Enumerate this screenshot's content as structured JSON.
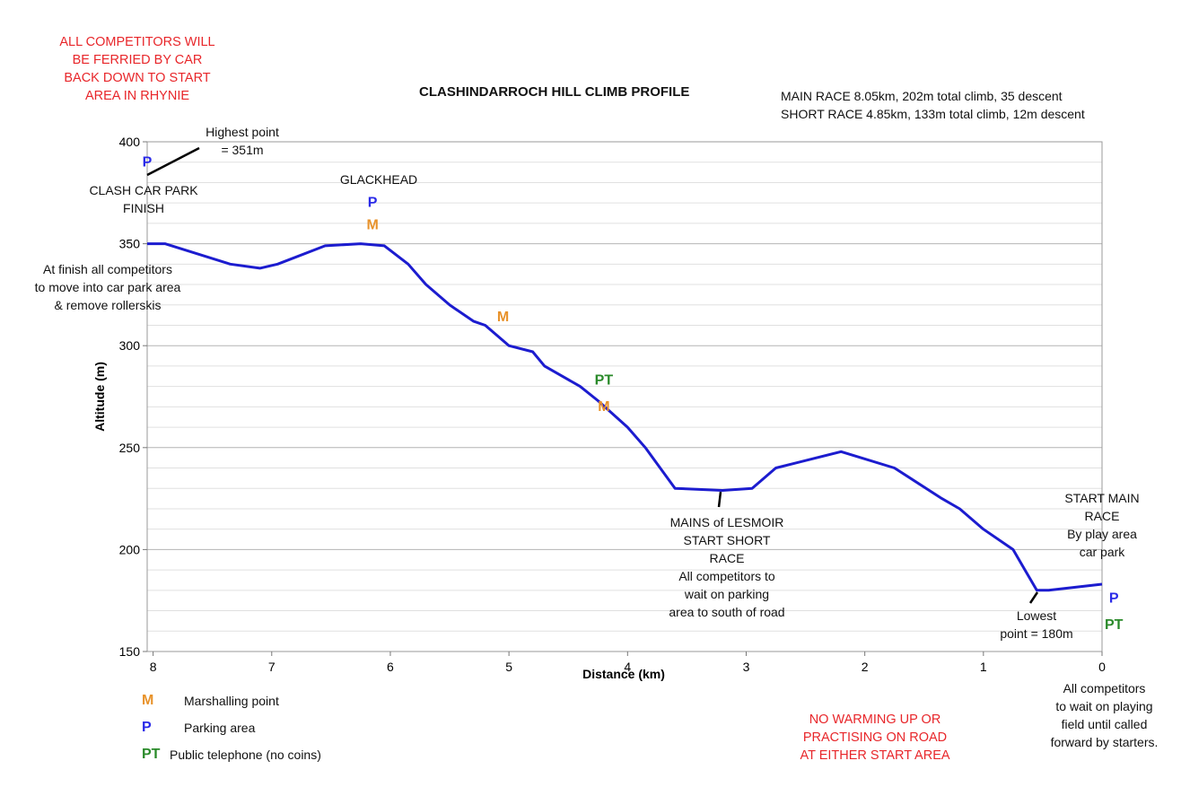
{
  "notices": {
    "ferry": [
      "ALL COMPETITORS WILL",
      "BE FERRIED BY CAR",
      "BACK DOWN TO START",
      "AREA IN RHYNIE"
    ],
    "warmup": [
      "NO WARMING UP OR",
      "PRACTISING ON ROAD",
      "AT EITHER START AREA"
    ]
  },
  "race_info": {
    "main": "MAIN RACE 8.05km, 202m total climb, 35 descent",
    "short": "SHORT RACE 4.85km, 133m total climb, 12m descent"
  },
  "annotations": {
    "highest": [
      "Highest point",
      "= 351m"
    ],
    "clash": [
      "CLASH CAR PARK",
      "FINISH"
    ],
    "glackhead": "GLACKHEAD",
    "finish_note": [
      "At finish all competitors",
      "to move into car park area",
      "& remove rollerskis"
    ],
    "mains": [
      "MAINS of LESMOIR",
      "START SHORT",
      "RACE",
      "All competitors to",
      "wait on parking",
      "area to south of road"
    ],
    "start_main": [
      "START MAIN",
      "RACE",
      "By play area",
      "car park"
    ],
    "lowest": [
      "Lowest",
      "point = 180m"
    ],
    "playing_field": [
      "All competitors",
      "to wait on playing",
      "field until called",
      "forward by starters."
    ]
  },
  "symbols": {
    "marshal": "M",
    "parking": "P",
    "phone": "PT"
  },
  "legend": [
    {
      "symbol": "M",
      "label": "Marshalling point",
      "color": "#e8922a"
    },
    {
      "symbol": "P",
      "label": "Parking area",
      "color": "#2a2ae8"
    },
    {
      "symbol": "PT",
      "label": "Public telephone (no coins)",
      "color": "#2a8a2a"
    }
  ],
  "colors": {
    "line": "#1c1ccf",
    "marshal": "#e8922a",
    "parking": "#2a2ae8",
    "phone": "#2a8a2a",
    "notice": "#e8262a"
  },
  "chart_data": {
    "type": "line",
    "title": "CLASHINDARROCH HILL CLIMB PROFILE",
    "xlabel": "Distance (km)",
    "ylabel": "Altitude (m)",
    "xlim": [
      8.05,
      0
    ],
    "ylim": [
      150,
      400
    ],
    "x_ticks": [
      "8",
      "7",
      "6",
      "5",
      "4",
      "3",
      "2",
      "1",
      "0"
    ],
    "y_ticks": [
      "150",
      "200",
      "250",
      "300",
      "350",
      "400"
    ],
    "grid": true,
    "series": [
      {
        "x": [
          8.05,
          7.9,
          7.35,
          7.1,
          6.95,
          6.55,
          6.25,
          6.05,
          5.85,
          5.7,
          5.5,
          5.3,
          5.2,
          5.0,
          4.8,
          4.7,
          4.4,
          4.25,
          4.0,
          3.85,
          3.6,
          3.2,
          2.95,
          2.75,
          2.2,
          1.75,
          1.35,
          1.2,
          1.0,
          0.75,
          0.65,
          0.55,
          0.45,
          0.0
        ],
        "y": [
          350,
          350,
          340,
          338,
          340,
          349,
          350,
          349,
          340,
          330,
          320,
          312,
          310,
          300,
          297,
          290,
          280,
          273,
          260,
          250,
          230,
          229,
          230,
          240,
          248,
          240,
          225,
          220,
          210,
          200,
          190,
          180,
          180,
          183
        ]
      }
    ],
    "markers": [
      {
        "label": "P",
        "x": 8.05,
        "y": 388,
        "kind": "parking"
      },
      {
        "label": "P",
        "x": 6.15,
        "y": 368,
        "kind": "parking"
      },
      {
        "label": "M",
        "x": 6.15,
        "y": 357,
        "kind": "marshal"
      },
      {
        "label": "M",
        "x": 5.05,
        "y": 312,
        "kind": "marshal"
      },
      {
        "label": "PT",
        "x": 4.2,
        "y": 281,
        "kind": "phone"
      },
      {
        "label": "M",
        "x": 4.2,
        "y": 268,
        "kind": "marshal"
      },
      {
        "label": "P",
        "x": -0.1,
        "y": 174,
        "kind": "parking"
      },
      {
        "label": "PT",
        "x": -0.1,
        "y": 161,
        "kind": "phone"
      }
    ]
  }
}
